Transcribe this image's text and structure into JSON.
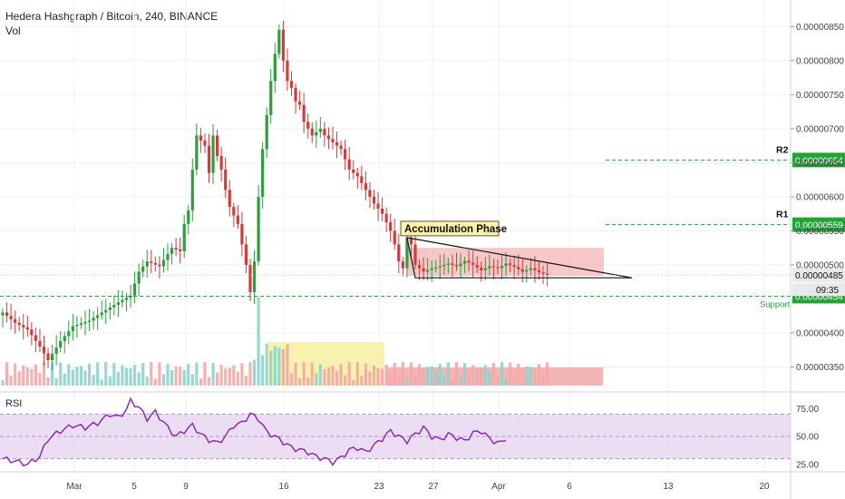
{
  "header": {
    "title": "Hedera Hashgraph / Bitcoin, 240, BINANCE",
    "volume_label": "Vol"
  },
  "rsi_label": "RSI",
  "colors": {
    "up": "#26a69a",
    "down": "#ef5350",
    "candle_up": "#2e9e3e",
    "candle_down": "#d63a3a",
    "rsi": "#8e2bb5",
    "green_level": "#21a336",
    "zone_red": "#f2a3a3",
    "zone_yellow": "#f8f0a0"
  },
  "chart_data": {
    "type": "candlestick",
    "y_axis": {
      "ticks": [
        "0.00000850",
        "0.00000800",
        "0.00000750",
        "0.00000700",
        "0.00000650",
        "0.00000600",
        "0.00000550",
        "0.00000500",
        "0.00000450",
        "0.00000400",
        "0.00000350"
      ],
      "tick_values": [
        850,
        800,
        750,
        700,
        650,
        600,
        550,
        500,
        450,
        400,
        350
      ],
      "unit_scale": "1e-8 BTC"
    },
    "x_axis": {
      "ticks": [
        "Mar",
        "5",
        "9",
        "16",
        "23",
        "27",
        "Apr",
        "6",
        "13",
        "20"
      ]
    },
    "price_path": [
      [
        0,
        430
      ],
      [
        3,
        415
      ],
      [
        6,
        405
      ],
      [
        9,
        380
      ],
      [
        11,
        360
      ],
      [
        14,
        388
      ],
      [
        17,
        410
      ],
      [
        21,
        418
      ],
      [
        24,
        430
      ],
      [
        28,
        445
      ],
      [
        31,
        455
      ],
      [
        33,
        490
      ],
      [
        35,
        505
      ],
      [
        38,
        498
      ],
      [
        41,
        525
      ],
      [
        43,
        520
      ],
      [
        44,
        560
      ],
      [
        45,
        580
      ],
      [
        46,
        640
      ],
      [
        47,
        690
      ],
      [
        49,
        675
      ],
      [
        50,
        635
      ],
      [
        51,
        690
      ],
      [
        52,
        660
      ],
      [
        53,
        640
      ],
      [
        54,
        610
      ],
      [
        55,
        585
      ],
      [
        57,
        560
      ],
      [
        58,
        530
      ],
      [
        59,
        500
      ],
      [
        60,
        460
      ],
      [
        61,
        505
      ],
      [
        62,
        600
      ],
      [
        63,
        670
      ],
      [
        64,
        720
      ],
      [
        65,
        770
      ],
      [
        66,
        810
      ],
      [
        67,
        845
      ],
      [
        68,
        800
      ],
      [
        69,
        770
      ],
      [
        70,
        760
      ],
      [
        71,
        740
      ],
      [
        72,
        735
      ],
      [
        73,
        710
      ],
      [
        74,
        700
      ],
      [
        75,
        690
      ],
      [
        77,
        700
      ],
      [
        78,
        690
      ],
      [
        80,
        680
      ],
      [
        82,
        670
      ],
      [
        84,
        640
      ],
      [
        86,
        630
      ],
      [
        88,
        610
      ],
      [
        90,
        590
      ],
      [
        92,
        575
      ],
      [
        94,
        550
      ],
      [
        95,
        530
      ],
      [
        96,
        505
      ],
      [
        97,
        495
      ],
      [
        98,
        540
      ],
      [
        99,
        530
      ],
      [
        100,
        500
      ],
      [
        102,
        490
      ],
      [
        104,
        495
      ],
      [
        106,
        498
      ],
      [
        108,
        502
      ],
      [
        110,
        498
      ],
      [
        112,
        506
      ],
      [
        114,
        500
      ],
      [
        116,
        492
      ],
      [
        118,
        498
      ],
      [
        120,
        495
      ],
      [
        122,
        502
      ],
      [
        124,
        497
      ],
      [
        126,
        490
      ],
      [
        128,
        495
      ],
      [
        130,
        489
      ],
      [
        132,
        485
      ]
    ],
    "current_price": {
      "label": "0.00000485",
      "value": 485
    },
    "countdown": "09:35",
    "levels": [
      {
        "name": "R2",
        "label": "0.00000654",
        "value": 654
      },
      {
        "name": "R1",
        "label": "0.00000559",
        "value": 559
      },
      {
        "name": "Support",
        "label": "0.00000454",
        "value": 454
      }
    ],
    "annotation": "Accumulation Phase",
    "rsi": {
      "ticks": [
        "75.00",
        "50.00",
        "25.00"
      ],
      "tick_values": [
        75,
        50,
        25
      ],
      "band": [
        30,
        70
      ],
      "path": [
        [
          0,
          30
        ],
        [
          3,
          28
        ],
        [
          6,
          25
        ],
        [
          9,
          32
        ],
        [
          11,
          48
        ],
        [
          14,
          55
        ],
        [
          17,
          60
        ],
        [
          20,
          58
        ],
        [
          23,
          62
        ],
        [
          26,
          70
        ],
        [
          28,
          67
        ],
        [
          30,
          74
        ],
        [
          31,
          82
        ],
        [
          33,
          76
        ],
        [
          35,
          66
        ],
        [
          37,
          72
        ],
        [
          40,
          58
        ],
        [
          42,
          50
        ],
        [
          44,
          55
        ],
        [
          46,
          60
        ],
        [
          48,
          52
        ],
        [
          50,
          47
        ],
        [
          52,
          44
        ],
        [
          54,
          50
        ],
        [
          56,
          60
        ],
        [
          58,
          62
        ],
        [
          60,
          70
        ],
        [
          62,
          66
        ],
        [
          64,
          54
        ],
        [
          66,
          50
        ],
        [
          68,
          45
        ],
        [
          70,
          40
        ],
        [
          72,
          38
        ],
        [
          74,
          36
        ],
        [
          76,
          32
        ],
        [
          78,
          30
        ],
        [
          80,
          27
        ],
        [
          82,
          31
        ],
        [
          84,
          38
        ],
        [
          86,
          40
        ],
        [
          88,
          36
        ],
        [
          90,
          42
        ],
        [
          92,
          48
        ],
        [
          94,
          55
        ],
        [
          96,
          50
        ],
        [
          98,
          46
        ],
        [
          100,
          52
        ],
        [
          102,
          58
        ],
        [
          104,
          50
        ],
        [
          106,
          47
        ],
        [
          108,
          52
        ],
        [
          110,
          49
        ],
        [
          112,
          46
        ],
        [
          114,
          53
        ],
        [
          116,
          55
        ],
        [
          118,
          48
        ],
        [
          120,
          44
        ],
        [
          122,
          46
        ]
      ]
    }
  }
}
